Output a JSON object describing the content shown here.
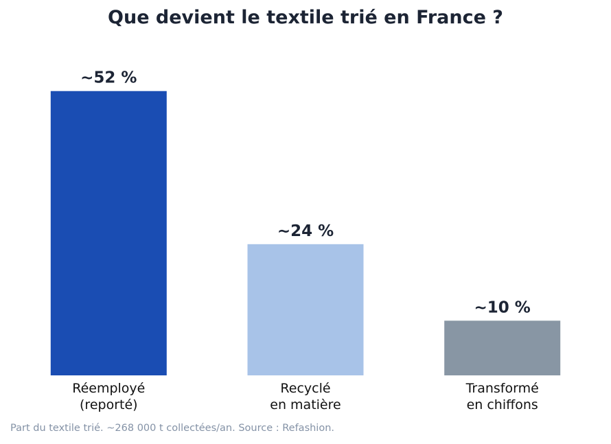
{
  "chart_data": {
    "type": "bar",
    "title": "Que devient le textile trié en France ?",
    "categories": [
      [
        "Réemployé",
        "(reporté)"
      ],
      [
        "Recyclé",
        "en matière"
      ],
      [
        "Transformé",
        "en chiffons"
      ]
    ],
    "values": [
      52,
      24,
      10
    ],
    "value_labels": [
      "~52 %",
      "~24 %",
      "~10 %"
    ],
    "colors": [
      "#1a4db3",
      "#a8c3e8",
      "#8896a4"
    ],
    "xlabel": "",
    "ylabel": "",
    "ylim": [
      0,
      60
    ],
    "grid": false,
    "legend": "none"
  },
  "footnote": "Part du textile trié. ~268 000 t collectées/an. Source : Refashion."
}
